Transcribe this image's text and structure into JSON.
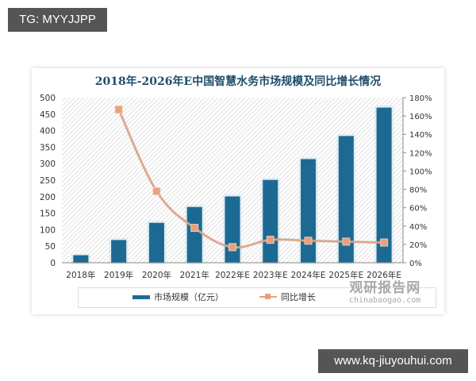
{
  "overlays": {
    "top_tag": "TG: MYYJJPP",
    "bottom_tag": "www.kq-jiuyouhui.com"
  },
  "watermark": {
    "name": "观研报告网",
    "url": "chinabaogao.com"
  },
  "chart_data": {
    "type": "bar",
    "title": "2018年-2026年E中国智慧水务市场规模及同比增长情况",
    "categories": [
      "2018年",
      "2019年",
      "2020年",
      "2021年",
      "2022年E",
      "2023年E",
      "2024年E",
      "2025年E",
      "2026年E"
    ],
    "series": [
      {
        "name": "市场规模（亿元）",
        "type": "bar",
        "axis": "left",
        "color": "#1f6b93",
        "values": [
          24,
          70,
          122,
          170,
          202,
          252,
          315,
          385,
          471
        ]
      },
      {
        "name": "同比增长",
        "type": "line",
        "axis": "right",
        "color": "#e8a07c",
        "unit": "%",
        "values": [
          null,
          167,
          78,
          38,
          17,
          25,
          24,
          23,
          22
        ]
      }
    ],
    "y_left": {
      "ylim": [
        0,
        500
      ],
      "ticks": [
        "0",
        "50",
        "100",
        "150",
        "200",
        "250",
        "300",
        "350",
        "400",
        "450",
        "500"
      ]
    },
    "y_right": {
      "ylim": [
        0,
        180
      ],
      "ticks": [
        "0%",
        "20%",
        "40%",
        "60%",
        "80%",
        "100%",
        "120%",
        "140%",
        "160%",
        "180%"
      ]
    },
    "xlabel": "",
    "ylabel": "",
    "grid": false,
    "background": "diagonal hatch",
    "legend_position": "bottom",
    "legend": [
      "市场规模（亿元）",
      "同比增长"
    ]
  }
}
